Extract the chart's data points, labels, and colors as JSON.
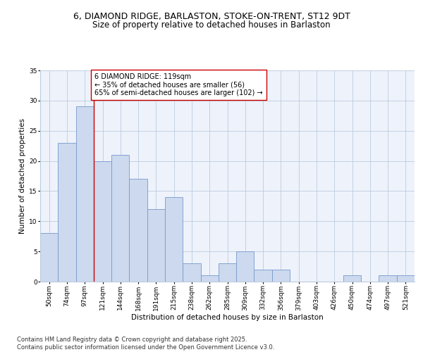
{
  "title_line1": "6, DIAMOND RIDGE, BARLASTON, STOKE-ON-TRENT, ST12 9DT",
  "title_line2": "Size of property relative to detached houses in Barlaston",
  "xlabel": "Distribution of detached houses by size in Barlaston",
  "ylabel": "Number of detached properties",
  "categories": [
    "50sqm",
    "74sqm",
    "97sqm",
    "121sqm",
    "144sqm",
    "168sqm",
    "191sqm",
    "215sqm",
    "238sqm",
    "262sqm",
    "285sqm",
    "309sqm",
    "332sqm",
    "356sqm",
    "379sqm",
    "403sqm",
    "426sqm",
    "450sqm",
    "474sqm",
    "497sqm",
    "521sqm"
  ],
  "values": [
    8,
    23,
    29,
    20,
    21,
    17,
    12,
    14,
    3,
    1,
    3,
    5,
    2,
    2,
    0,
    0,
    0,
    1,
    0,
    1,
    1
  ],
  "bar_color": "#ccd9ee",
  "bar_edge_color": "#7799cc",
  "vline_x": 2.5,
  "vline_color": "#cc0000",
  "annotation_text": "6 DIAMOND RIDGE: 119sqm\n← 35% of detached houses are smaller (56)\n65% of semi-detached houses are larger (102) →",
  "annotation_box_color": "white",
  "annotation_box_edge_color": "#cc0000",
  "ylim": [
    0,
    35
  ],
  "yticks": [
    0,
    5,
    10,
    15,
    20,
    25,
    30,
    35
  ],
  "grid_color": "#bbccdd",
  "background_color": "#eef2fb",
  "footer_text": "Contains HM Land Registry data © Crown copyright and database right 2025.\nContains public sector information licensed under the Open Government Licence v3.0.",
  "title_fontsize": 9,
  "subtitle_fontsize": 8.5,
  "axis_label_fontsize": 7.5,
  "tick_fontsize": 6.5,
  "annotation_fontsize": 7,
  "footer_fontsize": 6
}
